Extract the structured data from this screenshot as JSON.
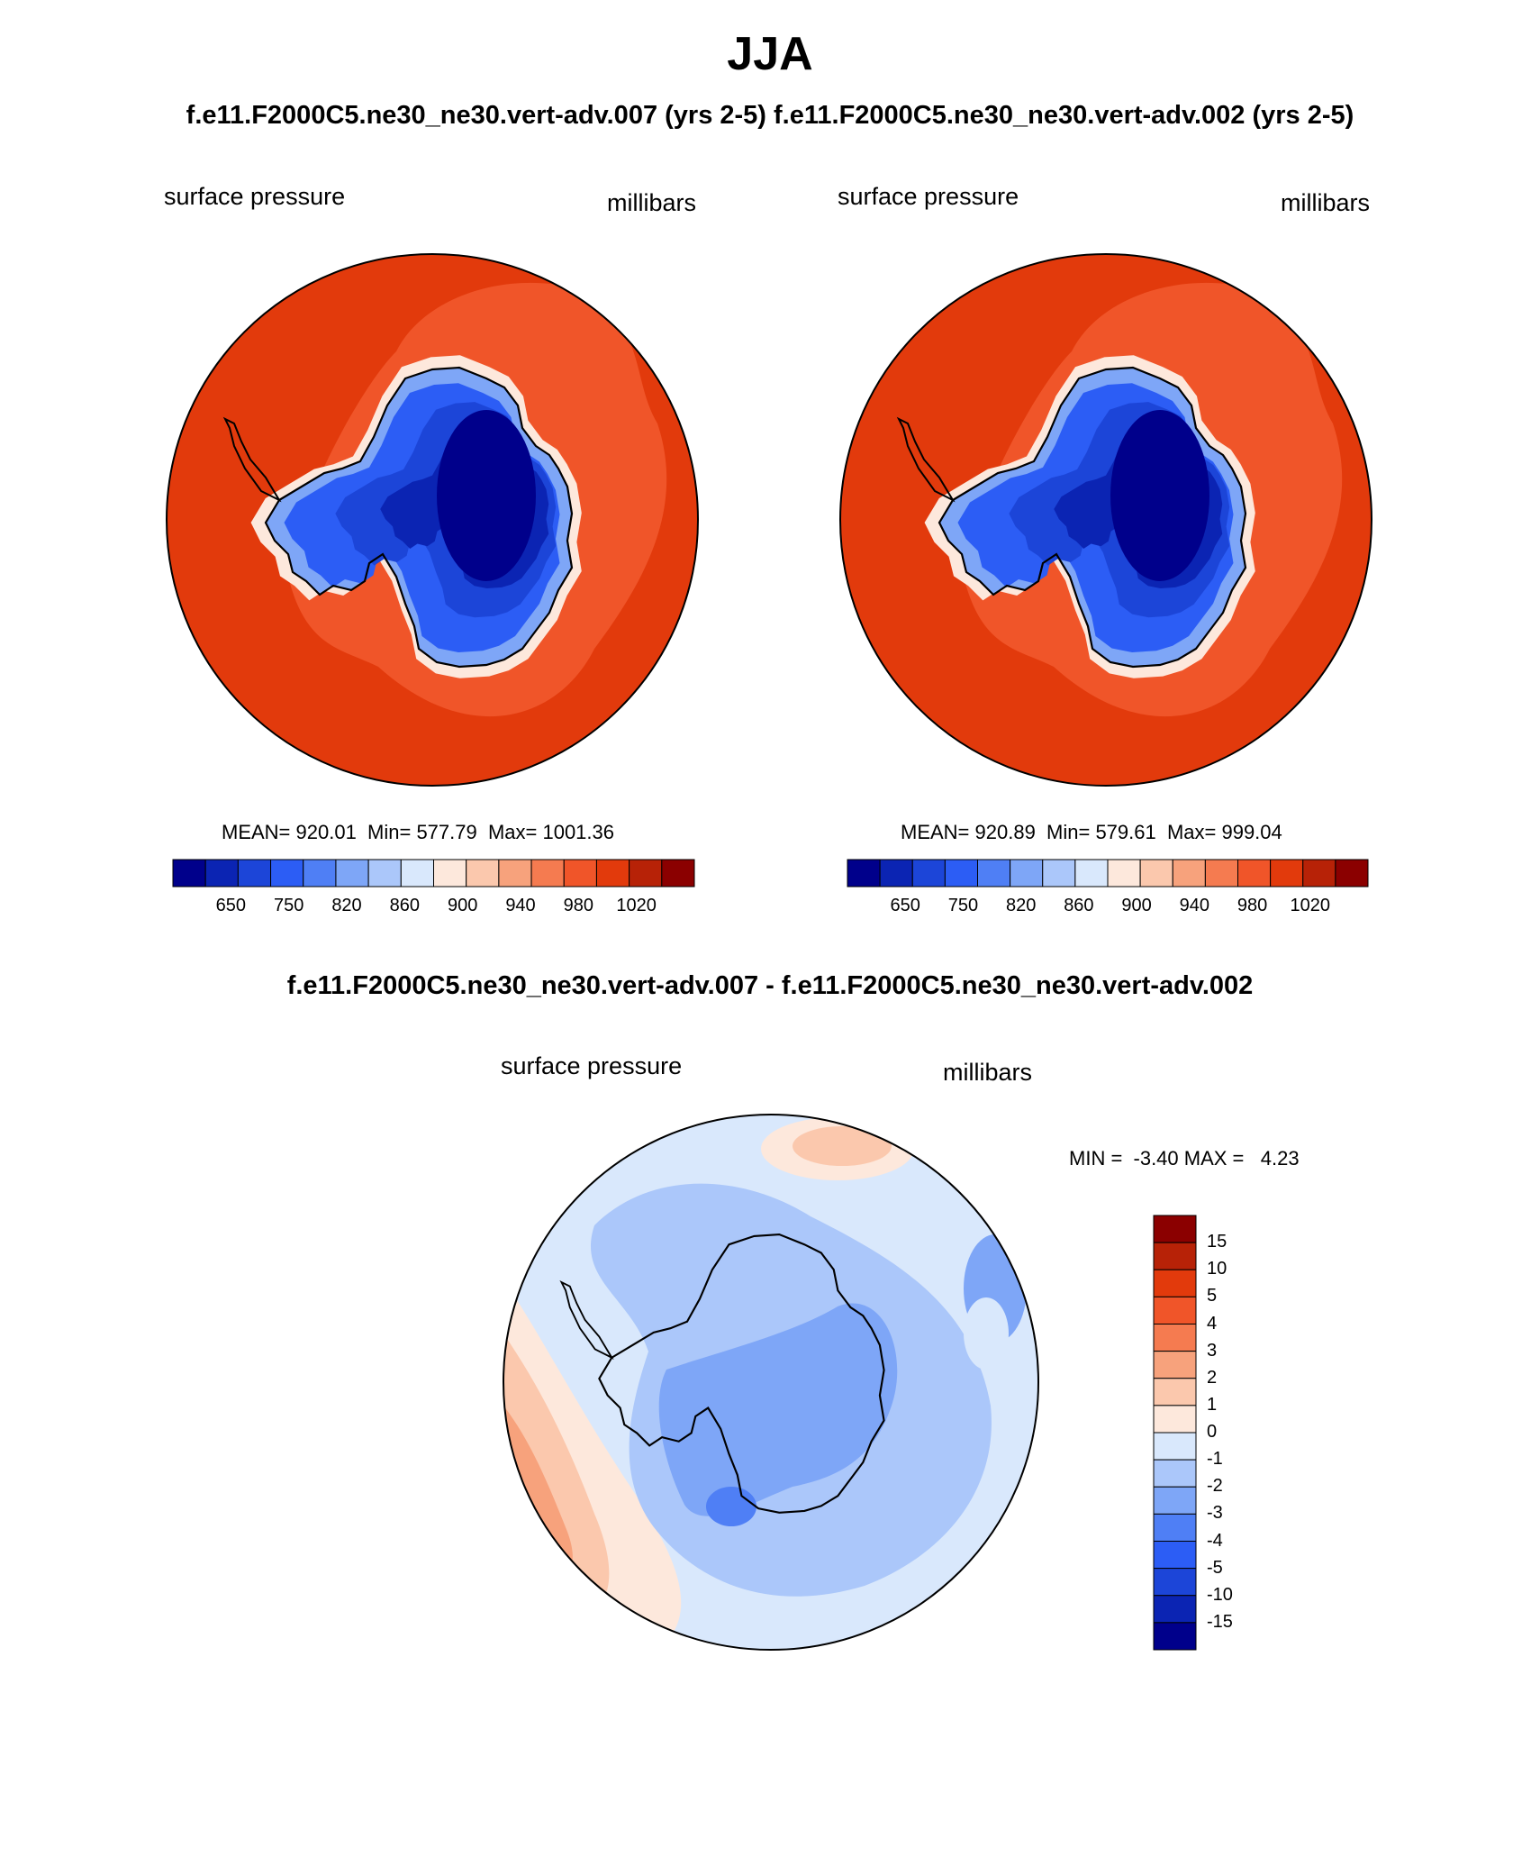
{
  "page": {
    "title": "JJA",
    "subtitle": "f.e11.F2000C5.ne30_ne30.vert-adv.007 (yrs 2-5)  f.e11.F2000C5.ne30_ne30.vert-adv.002 (yrs 2-5)",
    "diff_title": "f.e11.F2000C5.ne30_ne30.vert-adv.007 - f.e11.F2000C5.ne30_ne30.vert-adv.002"
  },
  "panels": {
    "left": {
      "variable": "surface pressure",
      "units": "millibars",
      "stats": "MEAN= 920.01  Min= 577.79  Max= 1001.36"
    },
    "right": {
      "variable": "surface pressure",
      "units": "millibars",
      "stats": "MEAN= 920.89  Min= 579.61  Max= 999.04"
    },
    "diff": {
      "variable": "surface pressure",
      "units": "millibars",
      "stats": "MIN =  -3.40 MAX =   4.23"
    }
  },
  "colorbar_top": {
    "tick_labels": [
      "650",
      "750",
      "820",
      "860",
      "900",
      "940",
      "980",
      "1020"
    ],
    "colors": [
      "#00008b",
      "#0b24b3",
      "#1c45d8",
      "#2c5df5",
      "#4f7ff5",
      "#7ea6f7",
      "#abc7fa",
      "#d9e8fc",
      "#fde8dc",
      "#fbc8ad",
      "#f7a27c",
      "#f57b50",
      "#f05529",
      "#e23a0c",
      "#b72207",
      "#8b0000"
    ]
  },
  "colorbar_diff": {
    "tick_labels": [
      "15",
      "10",
      "5",
      "4",
      "3",
      "2",
      "1",
      "0",
      "-1",
      "-2",
      "-3",
      "-4",
      "-5",
      "-10",
      "-15"
    ],
    "colors": [
      "#8b0000",
      "#b72207",
      "#e23a0c",
      "#f05529",
      "#f57b50",
      "#f7a27c",
      "#fbc8ad",
      "#fde8dc",
      "#d9e8fc",
      "#abc7fa",
      "#7ea6f7",
      "#4f7ff5",
      "#2c5df5",
      "#1c45d8",
      "#0b24b3",
      "#00008b"
    ]
  },
  "map_colors": {
    "ocean_outer": "#e23a0c",
    "ocean_inner": "#f05529",
    "coast_ring": "#fde8dc",
    "land_1": "#7ea6f7",
    "land_2": "#2c5df5",
    "land_3": "#1c45d8",
    "land_4": "#0b24b3",
    "land_core": "#00008b",
    "diff_base": "#d9e8fc",
    "diff_neg1": "#abc7fa",
    "diff_neg2": "#7ea6f7",
    "diff_neg3": "#4f7ff5",
    "diff_pos1": "#fde8dc",
    "diff_pos2": "#fbc8ad",
    "diff_pos3": "#f7a27c",
    "diff_pos4": "#f57b50"
  }
}
